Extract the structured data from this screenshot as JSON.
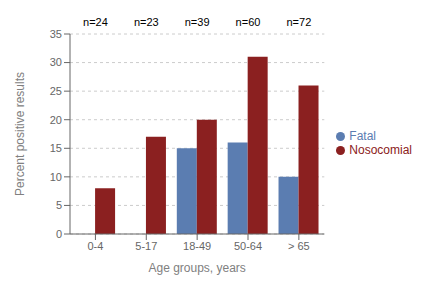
{
  "chart_data": {
    "type": "bar",
    "categories": [
      "0-4",
      "5-17",
      "18-49",
      "50-64",
      "> 65"
    ],
    "annotations": [
      "n=24",
      "n=23",
      "n=39",
      "n=60",
      "n=72"
    ],
    "series": [
      {
        "name": "Fatal",
        "color": "#5b7db1",
        "values": [
          0,
          0,
          15,
          16,
          10
        ]
      },
      {
        "name": "Nosocomial",
        "color": "#8b2020",
        "values": [
          8,
          17,
          20,
          31,
          26
        ]
      }
    ],
    "xlabel": "Age groups, years",
    "ylabel": "Percent positive results",
    "ylim": [
      0,
      35
    ],
    "yticks": [
      0,
      5,
      10,
      15,
      20,
      25,
      30,
      35
    ],
    "grid": true,
    "legend": "right"
  }
}
